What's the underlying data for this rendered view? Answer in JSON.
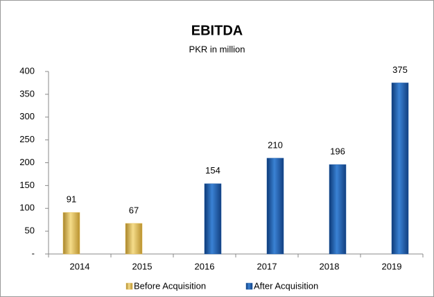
{
  "chart_data": {
    "type": "bar",
    "title": "EBITDA",
    "subtitle": "PKR in million",
    "categories": [
      "2014",
      "2015",
      "2016",
      "2017",
      "2018",
      "2019"
    ],
    "series": [
      {
        "name": "Before Acquisition",
        "color": "#e6bd52",
        "values": [
          91,
          67,
          null,
          null,
          null,
          null
        ]
      },
      {
        "name": "After Acquisition",
        "color": "#1f5aa6",
        "values": [
          null,
          null,
          154,
          210,
          196,
          375
        ]
      }
    ],
    "ylim": [
      0,
      400
    ],
    "yticks": [
      {
        "value": 0,
        "label": "-"
      },
      50,
      100,
      150,
      200,
      250,
      300,
      350,
      400
    ],
    "legend": "bottom"
  }
}
